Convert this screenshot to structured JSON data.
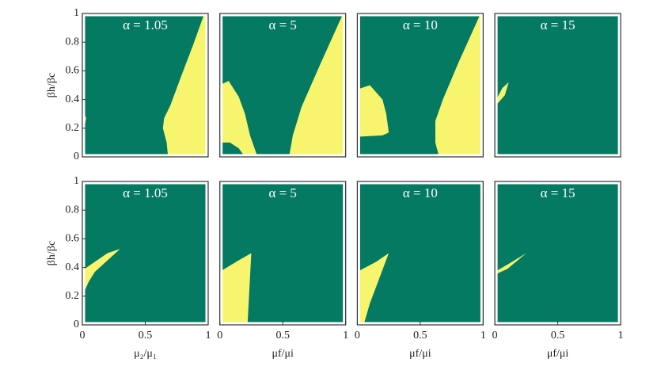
{
  "chart_data": [
    {
      "type": "region",
      "title": "α = 1.05",
      "ylabel": "βh/βc",
      "background": "#047a62",
      "color": "#f7f56e",
      "xlim": [
        0,
        1
      ],
      "ylim": [
        0,
        1
      ],
      "yticks": [
        0,
        0.2,
        0.4,
        0.6,
        0.8,
        1
      ],
      "regions": [
        {
          "x": [
            0,
            0.02,
            0.01,
            0.03,
            0.02,
            0
          ],
          "y": [
            0.45,
            0.38,
            0.32,
            0.27,
            0.22,
            0.2
          ]
        },
        {
          "x": [
            0.97,
            1,
            1,
            0.68,
            0.67,
            0.64,
            0.65,
            0.7,
            0.78,
            0.88
          ],
          "y": [
            1,
            1,
            0.02,
            0.01,
            0.1,
            0.2,
            0.27,
            0.36,
            0.55,
            0.78
          ]
        }
      ]
    },
    {
      "type": "region",
      "title": "α = 5",
      "background": "#047a62",
      "color": "#f7f56e",
      "xlim": [
        0,
        1
      ],
      "ylim": [
        0,
        1
      ],
      "regions": [
        {
          "x": [
            0,
            0.07,
            0.15,
            0.2,
            0.24,
            0.3,
            0.2,
            0.15,
            0.08,
            0
          ],
          "y": [
            0.5,
            0.53,
            0.42,
            0.3,
            0.15,
            0,
            0,
            0.06,
            0.1,
            0.1
          ]
        },
        {
          "x": [
            0.98,
            1,
            1,
            0.55,
            0.58,
            0.65,
            0.8
          ],
          "y": [
            1,
            1,
            0,
            0,
            0.15,
            0.35,
            0.65
          ]
        }
      ]
    },
    {
      "type": "region",
      "title": "α = 10",
      "background": "#047a62",
      "color": "#f7f56e",
      "xlim": [
        0,
        1
      ],
      "ylim": [
        0,
        1
      ],
      "regions": [
        {
          "x": [
            0,
            0.1,
            0.2,
            0.23,
            0.25,
            0.2,
            0
          ],
          "y": [
            0.47,
            0.5,
            0.4,
            0.3,
            0.17,
            0.15,
            0.14
          ]
        },
        {
          "x": [
            0.98,
            1,
            1,
            0.65,
            0.62,
            0.62,
            0.68,
            0.8
          ],
          "y": [
            1,
            1,
            0,
            0,
            0.1,
            0.25,
            0.4,
            0.65
          ]
        }
      ]
    },
    {
      "type": "region",
      "title": "α = 15",
      "background": "#047a62",
      "color": "#f7f56e",
      "xlim": [
        0,
        1
      ],
      "ylim": [
        0,
        1
      ],
      "regions": [
        {
          "x": [
            0,
            0.06,
            0.11,
            0.08,
            0.02,
            0
          ],
          "y": [
            0.38,
            0.48,
            0.52,
            0.43,
            0.37,
            0.37
          ]
        }
      ]
    },
    {
      "type": "region",
      "title": "α = 1.05",
      "ylabel": "βh/βc",
      "xlabel": "μ₂/μ₁",
      "background": "#047a62",
      "color": "#f7f56e",
      "xlim": [
        0,
        1
      ],
      "ylim": [
        0,
        1
      ],
      "xticks": [
        0,
        0.5,
        1
      ],
      "yticks": [
        0,
        0.2,
        0.4,
        0.6,
        0.8,
        1
      ],
      "regions": [
        {
          "x": [
            0,
            0.1,
            0.2,
            0.3,
            0.1,
            0.05,
            0
          ],
          "y": [
            0.38,
            0.44,
            0.5,
            0.53,
            0.37,
            0.3,
            0.2
          ]
        }
      ]
    },
    {
      "type": "region",
      "title": "α = 5",
      "xlabel": "μf/μi",
      "background": "#047a62",
      "color": "#f7f56e",
      "xlim": [
        0,
        1
      ],
      "ylim": [
        0,
        1
      ],
      "xticks": [
        0,
        0.5,
        1
      ],
      "regions": [
        {
          "x": [
            0,
            0.15,
            0.25,
            0.22,
            0
          ],
          "y": [
            0.37,
            0.45,
            0.5,
            0,
            0
          ]
        }
      ]
    },
    {
      "type": "region",
      "title": "α = 10",
      "xlabel": "μf/μi",
      "background": "#047a62",
      "color": "#f7f56e",
      "xlim": [
        0,
        1
      ],
      "ylim": [
        0,
        1
      ],
      "xticks": [
        0,
        0.5,
        1
      ],
      "regions": [
        {
          "x": [
            0,
            0.15,
            0.25,
            0.1,
            0.05,
            0
          ],
          "y": [
            0.37,
            0.44,
            0.5,
            0.15,
            0,
            0
          ]
        }
      ]
    },
    {
      "type": "region",
      "title": "α = 15",
      "xlabel": "μf/μi",
      "background": "#047a62",
      "color": "#f7f56e",
      "xlim": [
        0,
        1
      ],
      "ylim": [
        0,
        1
      ],
      "xticks": [
        0,
        0.5,
        1
      ],
      "regions": [
        {
          "x": [
            0,
            0.1,
            0.25,
            0.1,
            0
          ],
          "y": [
            0.37,
            0.42,
            0.5,
            0.39,
            0.35
          ]
        }
      ]
    }
  ]
}
